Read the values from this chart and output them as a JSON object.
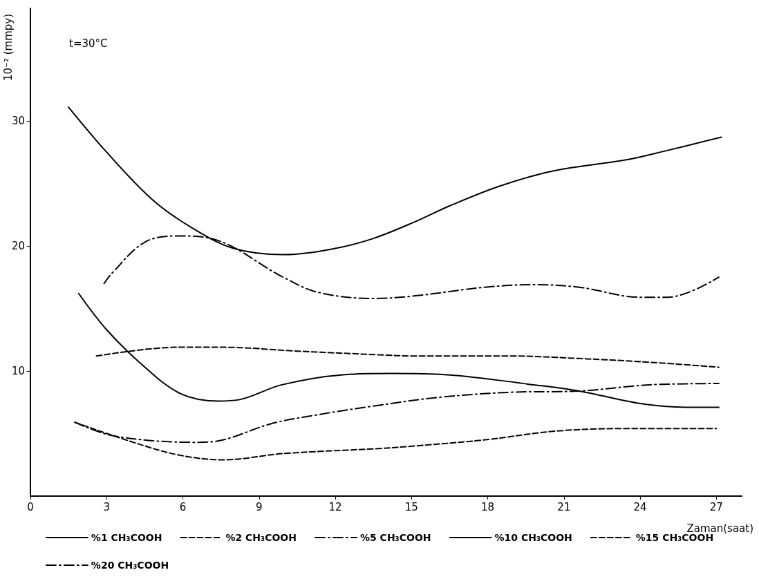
{
  "chart_data": {
    "type": "line",
    "xlabel": "Zaman(saat)",
    "ylabel": "10⁻² (mmpy)",
    "annotations": [
      "t=30°C"
    ],
    "xlim": [
      0,
      28
    ],
    "xticks": [
      0,
      3,
      6,
      9,
      12,
      15,
      18,
      21,
      24,
      27
    ],
    "ylim": [
      0,
      39
    ],
    "yticks": [
      10,
      20,
      30
    ],
    "grid": false,
    "legend": "bottom",
    "marker": "none",
    "series": [
      {
        "name": "%1 CH₃COOH",
        "color": "#000000",
        "line_style": "solid",
        "x": [
          1.9,
          3.0,
          4.4,
          5.9,
          7.4,
          8.2,
          9.9,
          12.3,
          14.2,
          16.4,
          19.8,
          21.6,
          24.0,
          25.8,
          27.1
        ],
        "values": [
          16.2,
          13.3,
          10.5,
          8.2,
          7.6,
          7.7,
          8.9,
          9.7,
          9.8,
          9.7,
          8.9,
          8.4,
          7.4,
          7.1,
          7.1
        ]
      },
      {
        "name": "%2 CH₃COOH",
        "color": "#000000",
        "line_style": "dashed",
        "x": [
          1.75,
          3.9,
          5.8,
          7.6,
          9.95,
          13.7,
          15.1,
          17.9,
          20.7,
          23.5,
          27.0
        ],
        "values": [
          5.9,
          4.4,
          3.3,
          2.9,
          3.4,
          3.8,
          4.0,
          4.5,
          5.2,
          5.4,
          5.4
        ]
      },
      {
        "name": "%5 CH₃COOH",
        "color": "#000000",
        "line_style": "dashdot",
        "x": [
          1.75,
          3.3,
          6.5,
          7.6,
          9.5,
          11.3,
          13.5,
          16.1,
          18.9,
          21.6,
          24.4,
          27.1
        ],
        "values": [
          5.9,
          4.8,
          4.3,
          4.5,
          5.8,
          6.5,
          7.2,
          7.9,
          8.3,
          8.4,
          8.9,
          9.0
        ]
      },
      {
        "name": "%10 CH₃COOH",
        "color": "#000000",
        "line_style": "solid",
        "x": [
          1.5,
          3.0,
          4.8,
          6.4,
          8.0,
          9.95,
          12.0,
          13.5,
          15.1,
          16.5,
          18.5,
          20.6,
          23.5,
          25.0,
          27.2
        ],
        "values": [
          31.1,
          27.5,
          23.7,
          21.4,
          19.8,
          19.3,
          19.8,
          20.6,
          21.9,
          23.2,
          24.8,
          26.0,
          26.9,
          27.6,
          28.7
        ]
      },
      {
        "name": "%15 CH₃COOH",
        "color": "#000000",
        "line_style": "dashed",
        "x": [
          2.6,
          5.8,
          7.6,
          10.4,
          13.7,
          15.1,
          18.9,
          21.6,
          24.4,
          27.1
        ],
        "values": [
          11.2,
          11.9,
          11.9,
          11.6,
          11.3,
          11.2,
          11.2,
          11.0,
          10.7,
          10.3
        ]
      },
      {
        "name": "%20 CH₃COOH",
        "color": "#000000",
        "line_style": "dashdot",
        "x": [
          2.9,
          3.2,
          4.5,
          5.8,
          7.1,
          9.95,
          11.3,
          13.5,
          15.1,
          17.9,
          19.8,
          21.6,
          24.0,
          25.1,
          27.1
        ],
        "values": [
          17.0,
          17.8,
          20.3,
          20.8,
          20.6,
          17.5,
          16.3,
          15.8,
          16.0,
          16.7,
          16.9,
          16.7,
          15.9,
          15.9,
          17.5
        ]
      }
    ]
  }
}
